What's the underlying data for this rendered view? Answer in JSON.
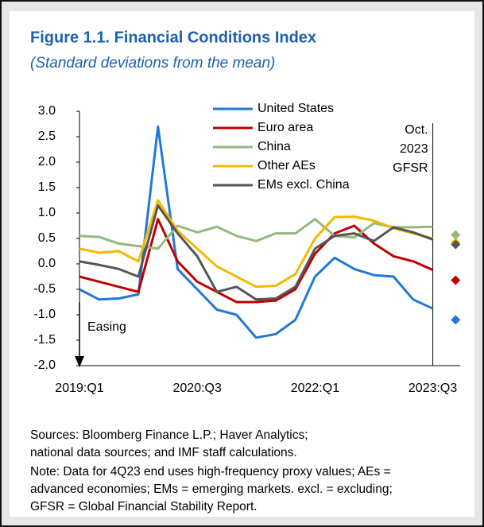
{
  "chart_data": {
    "type": "line",
    "title": "Figure 1.1. Financial Conditions Index",
    "subtitle": "(Standard deviations from the mean)",
    "categories": [
      "2019:Q1",
      null,
      null,
      null,
      null,
      null,
      "2020:Q3",
      null,
      null,
      null,
      null,
      null,
      "2022:Q1",
      null,
      null,
      null,
      null,
      null,
      "2023:Q3",
      null
    ],
    "series": [
      {
        "name": "United States",
        "color": "#2178d8",
        "values": [
          -0.5,
          -0.7,
          -0.68,
          -0.6,
          2.7,
          -0.1,
          -0.5,
          -0.9,
          -1.0,
          -1.45,
          -1.38,
          -1.1,
          -0.25,
          0.12,
          -0.1,
          -0.22,
          -0.25,
          -0.7,
          -0.88,
          null
        ],
        "proxy": -1.1
      },
      {
        "name": "Euro area",
        "color": "#c00000",
        "values": [
          -0.25,
          -0.35,
          -0.45,
          -0.55,
          0.88,
          0.05,
          -0.35,
          -0.55,
          -0.75,
          -0.75,
          -0.72,
          -0.5,
          0.2,
          0.6,
          0.75,
          0.4,
          0.15,
          0.05,
          -0.12,
          null
        ],
        "proxy": -0.32
      },
      {
        "name": "China",
        "color": "#93b97c",
        "values": [
          0.55,
          0.53,
          0.4,
          0.35,
          0.3,
          0.75,
          0.62,
          0.73,
          0.55,
          0.45,
          0.6,
          0.6,
          0.88,
          0.55,
          0.52,
          0.8,
          0.72,
          0.72,
          0.73,
          null
        ],
        "proxy": 0.57
      },
      {
        "name": "Other AEs",
        "color": "#f5b800",
        "values": [
          0.3,
          0.22,
          0.25,
          0.05,
          1.25,
          0.65,
          0.3,
          -0.05,
          -0.25,
          -0.45,
          -0.43,
          -0.2,
          0.5,
          0.92,
          0.93,
          0.85,
          0.7,
          0.6,
          0.5,
          null
        ],
        "proxy": 0.42
      },
      {
        "name": "EMs excl. China",
        "color": "#555555",
        "values": [
          0.05,
          -0.02,
          -0.1,
          -0.25,
          1.15,
          0.6,
          0.15,
          -0.55,
          -0.45,
          -0.7,
          -0.68,
          -0.45,
          0.3,
          0.55,
          0.6,
          0.45,
          0.72,
          0.62,
          0.48,
          null
        ],
        "proxy": 0.38
      }
    ],
    "ylim": [
      -2.0,
      3.0
    ],
    "yticks": [
      {
        "value": 3.0,
        "label": "3.0"
      },
      2.5,
      {
        "value": 2.0,
        "label": "2.0"
      },
      1.5,
      {
        "value": 1.0,
        "label": "1.0"
      },
      0.5,
      {
        "value": 0.0,
        "label": "0.0"
      },
      -0.5,
      {
        "value": -1.0,
        "label": "-1.0"
      },
      -1.5,
      {
        "value": -2.0,
        "label": "-2.0"
      }
    ],
    "annotations": {
      "easing": "Easing",
      "gfsr": [
        "Oct.",
        "2023",
        "GFSR"
      ]
    },
    "sources": [
      "Sources: Bloomberg Finance L.P.; Haver Analytics;",
      "national data sources; and IMF staff calculations."
    ],
    "note": [
      "Note: Data for 4Q23 end uses high-frequency proxy values; AEs =",
      "advanced economies; EMs = emerging markets. excl. = excluding;",
      "GFSR = Global Financial Stability Report."
    ],
    "legend": "top"
  }
}
